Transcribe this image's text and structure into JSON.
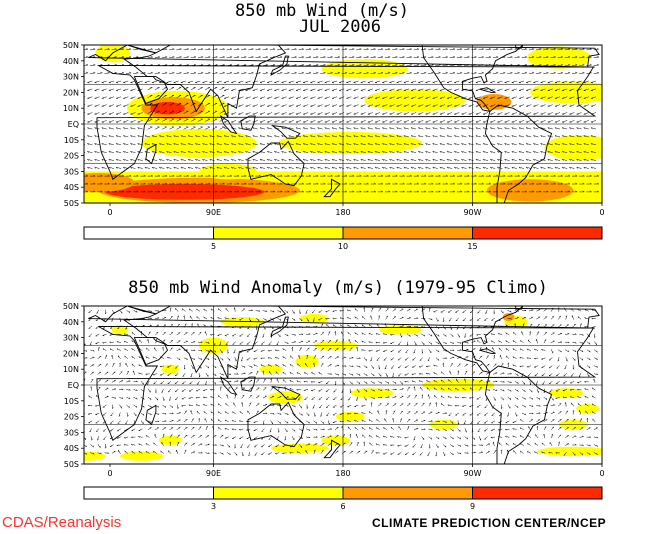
{
  "colors": {
    "lt5": "#ffffff",
    "c5_10": "#ffff00",
    "c10_15": "#ff9a00",
    "gt15": "#ff2a00",
    "anom_lt3": "#ffffff",
    "anom3_6": "#ffff00",
    "anom6_9": "#ff9a00",
    "anomgt9": "#ff2a00"
  },
  "top_panel": {
    "title_line1": "850 mb Wind (m/s)",
    "title_line2": "JUL 2006",
    "lat_ticks": [
      "50N",
      "40N",
      "30N",
      "20N",
      "10N",
      "EQ",
      "10S",
      "20S",
      "30S",
      "40S",
      "50S"
    ],
    "lon_ticks": [
      "0",
      "90E",
      "180",
      "90W",
      "0"
    ],
    "colorbar_labels": [
      "5",
      "10",
      "15"
    ]
  },
  "bottom_panel": {
    "title": "850 mb Wind Anomaly (m/s) (1979-95 Climo)",
    "lat_ticks": [
      "50N",
      "40N",
      "30N",
      "20N",
      "10N",
      "EQ",
      "10S",
      "20S",
      "30S",
      "40S",
      "50S"
    ],
    "lon_ticks": [
      "0",
      "90E",
      "180",
      "90W",
      "0"
    ],
    "colorbar_labels": [
      "3",
      "6",
      "9"
    ]
  },
  "footer": {
    "left_credit": "CDAS/Reanalysis",
    "right_credit": "CLIMATE PREDICTION CENTER/NCEP"
  }
}
